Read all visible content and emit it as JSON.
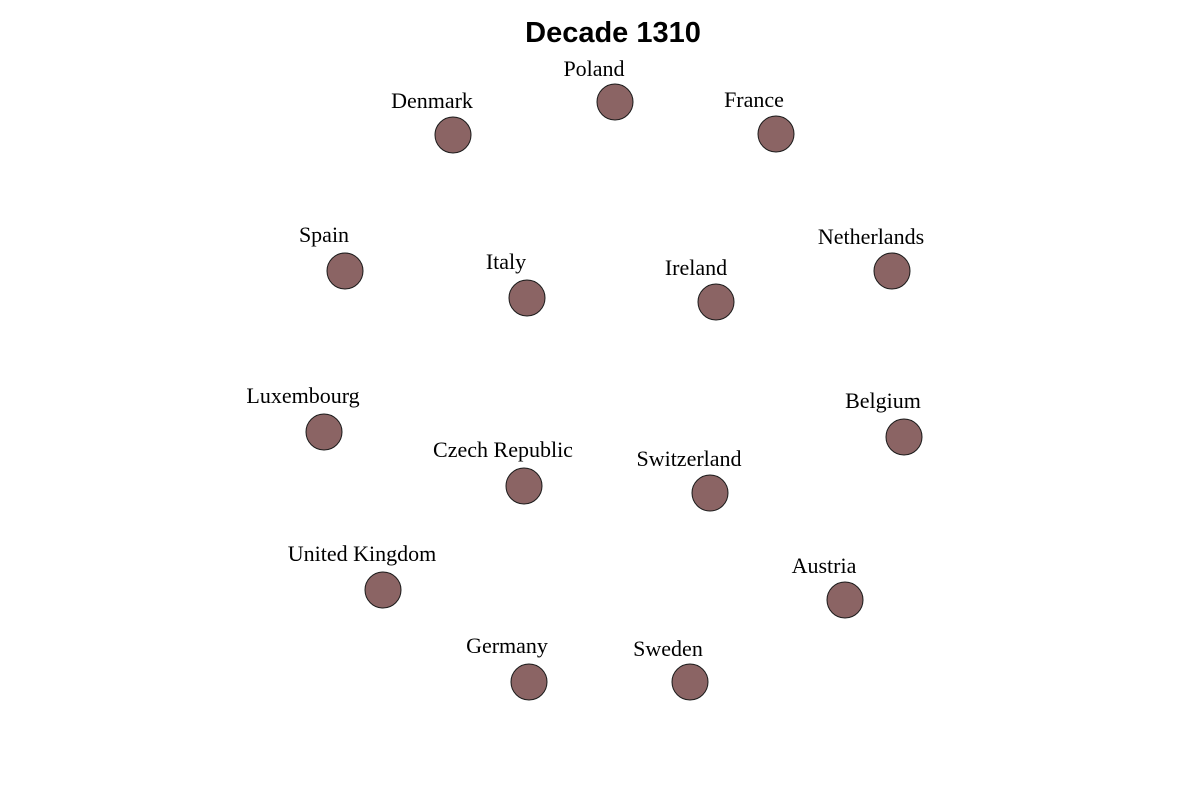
{
  "title": "Decade 1310",
  "colors": {
    "node_fill": "#8b6464",
    "node_stroke": "#1a1a1a",
    "text": "#000000",
    "background": "#ffffff"
  },
  "nodes": [
    {
      "label": "Poland"
    },
    {
      "label": "Denmark"
    },
    {
      "label": "France"
    },
    {
      "label": "Spain"
    },
    {
      "label": "Italy"
    },
    {
      "label": "Ireland"
    },
    {
      "label": "Netherlands"
    },
    {
      "label": "Luxembourg"
    },
    {
      "label": "Czech Republic"
    },
    {
      "label": "Switzerland"
    },
    {
      "label": "Belgium"
    },
    {
      "label": "United Kingdom"
    },
    {
      "label": "Austria"
    },
    {
      "label": "Germany"
    },
    {
      "label": "Sweden"
    }
  ]
}
